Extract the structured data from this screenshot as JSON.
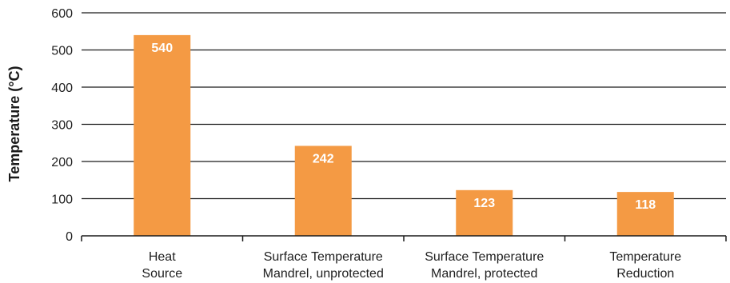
{
  "chart_data": {
    "type": "bar",
    "categories": [
      [
        "Heat",
        "Source"
      ],
      [
        "Surface Temperature",
        "Mandrel, unprotected"
      ],
      [
        "Surface Temperature",
        "Mandrel, protected"
      ],
      [
        "Temperature",
        "Reduction"
      ]
    ],
    "values": [
      540,
      242,
      123,
      118
    ],
    "data_labels": [
      "540",
      "242",
      "123",
      "118"
    ],
    "ylabel": "Temperature (°C)",
    "xlabel": "",
    "ylim": [
      0,
      600
    ],
    "yticks": [
      0,
      100,
      200,
      300,
      400,
      500,
      600
    ],
    "grid": true,
    "colors": {
      "bar": "#F49A44",
      "grid": "#1a1a1a",
      "axis": "#1a1a1a"
    }
  }
}
